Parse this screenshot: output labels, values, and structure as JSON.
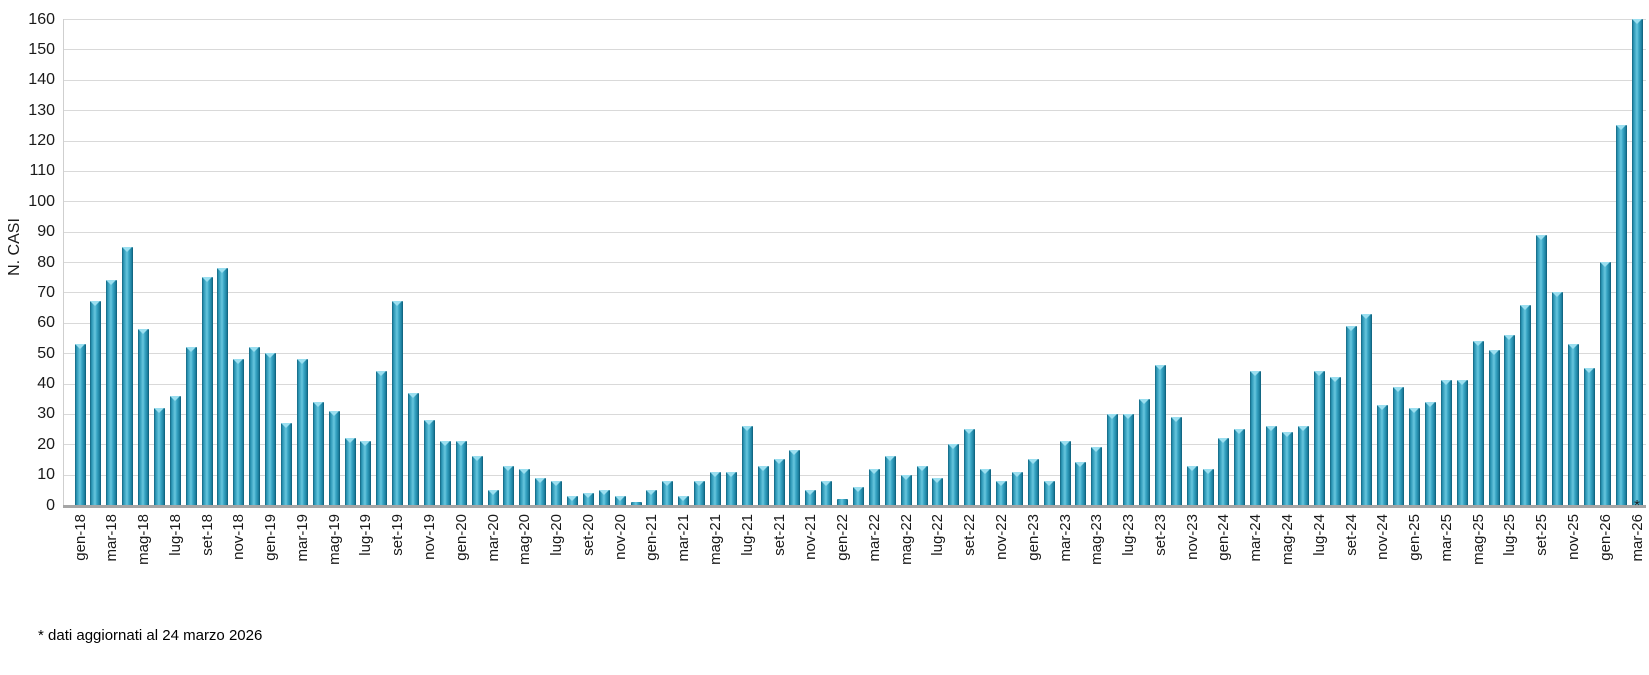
{
  "chart_data": {
    "type": "bar",
    "title": "",
    "xlabel": "",
    "ylabel": "N. CASI",
    "ylim": [
      0,
      160
    ],
    "ytick_step": 10,
    "yticks": [
      0,
      10,
      20,
      30,
      40,
      50,
      60,
      70,
      80,
      90,
      100,
      110,
      120,
      130,
      140,
      150,
      160
    ],
    "grid": true,
    "legend": "none",
    "bar_color": "#3aa7c6",
    "x_tick_label_every": 2,
    "last_bar_marker": "*",
    "categories": [
      "gen-18",
      "feb-18",
      "mar-18",
      "apr-18",
      "mag-18",
      "giu-18",
      "lug-18",
      "ago-18",
      "set-18",
      "ott-18",
      "nov-18",
      "dic-18",
      "gen-19",
      "feb-19",
      "mar-19",
      "apr-19",
      "mag-19",
      "giu-19",
      "lug-19",
      "ago-19",
      "set-19",
      "ott-19",
      "nov-19",
      "dic-19",
      "gen-20",
      "feb-20",
      "mar-20",
      "apr-20",
      "mag-20",
      "giu-20",
      "lug-20",
      "ago-20",
      "set-20",
      "ott-20",
      "nov-20",
      "dic-20",
      "gen-21",
      "feb-21",
      "mar-21",
      "apr-21",
      "mag-21",
      "giu-21",
      "lug-21",
      "ago-21",
      "set-21",
      "ott-21",
      "nov-21",
      "dic-21",
      "gen-22",
      "feb-22",
      "mar-22",
      "apr-22",
      "mag-22",
      "giu-22",
      "lug-22",
      "ago-22",
      "set-22",
      "ott-22",
      "nov-22",
      "dic-22",
      "gen-23",
      "feb-23",
      "mar-23",
      "apr-23",
      "mag-23",
      "giu-23",
      "lug-23",
      "ago-23",
      "set-23",
      "ott-23",
      "nov-23",
      "dic-23",
      "gen-24",
      "feb-24",
      "mar-24",
      "apr-24",
      "mag-24",
      "giu-24",
      "lug-24",
      "ago-24",
      "set-24",
      "ott-24",
      "nov-24",
      "dic-24",
      "gen-25",
      "feb-25",
      "mar-25",
      "apr-25",
      "mag-25",
      "giu-25",
      "lug-25",
      "ago-25",
      "set-25",
      "ott-25",
      "nov-25",
      "dic-25",
      "gen-26",
      "feb-26",
      "mar-26"
    ],
    "values": [
      53,
      67,
      74,
      85,
      58,
      32,
      36,
      52,
      75,
      78,
      48,
      52,
      50,
      27,
      48,
      34,
      31,
      22,
      21,
      44,
      67,
      37,
      28,
      21,
      21,
      16,
      5,
      13,
      12,
      9,
      8,
      3,
      4,
      5,
      3,
      1,
      5,
      8,
      3,
      8,
      11,
      11,
      26,
      13,
      15,
      18,
      5,
      8,
      2,
      6,
      12,
      16,
      10,
      13,
      9,
      20,
      25,
      12,
      8,
      11,
      15,
      8,
      21,
      14,
      19,
      30,
      30,
      35,
      46,
      29,
      13,
      12,
      22,
      25,
      44,
      26,
      24,
      26,
      44,
      42,
      59,
      63,
      33,
      39,
      32,
      34,
      41,
      41,
      54,
      51,
      56,
      66,
      89,
      70,
      53,
      45,
      80,
      125,
      160
    ]
  },
  "footnote": "* dati aggiornati al 24 marzo 2026"
}
